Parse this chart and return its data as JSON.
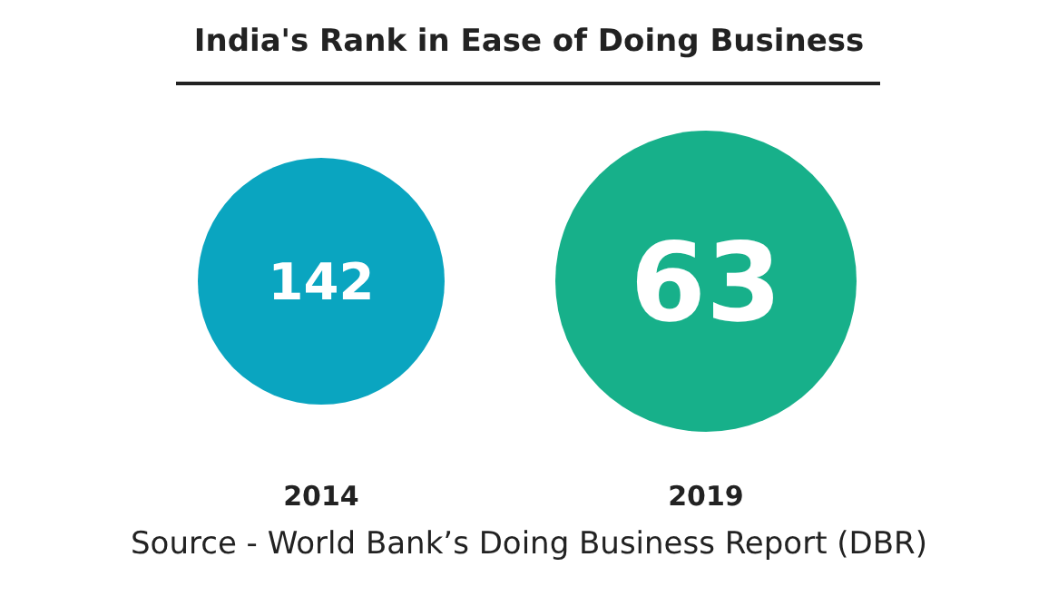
{
  "chart_data": {
    "type": "other",
    "title": "India's Rank in Ease of Doing Business",
    "categories": [
      "2014",
      "2019"
    ],
    "values": [
      142,
      63
    ],
    "colors": [
      "#0aa5c0",
      "#17b08a"
    ],
    "data_labels": true,
    "annotations": [
      "Source - World Bank’s Doing Business Report (DBR)"
    ]
  }
}
